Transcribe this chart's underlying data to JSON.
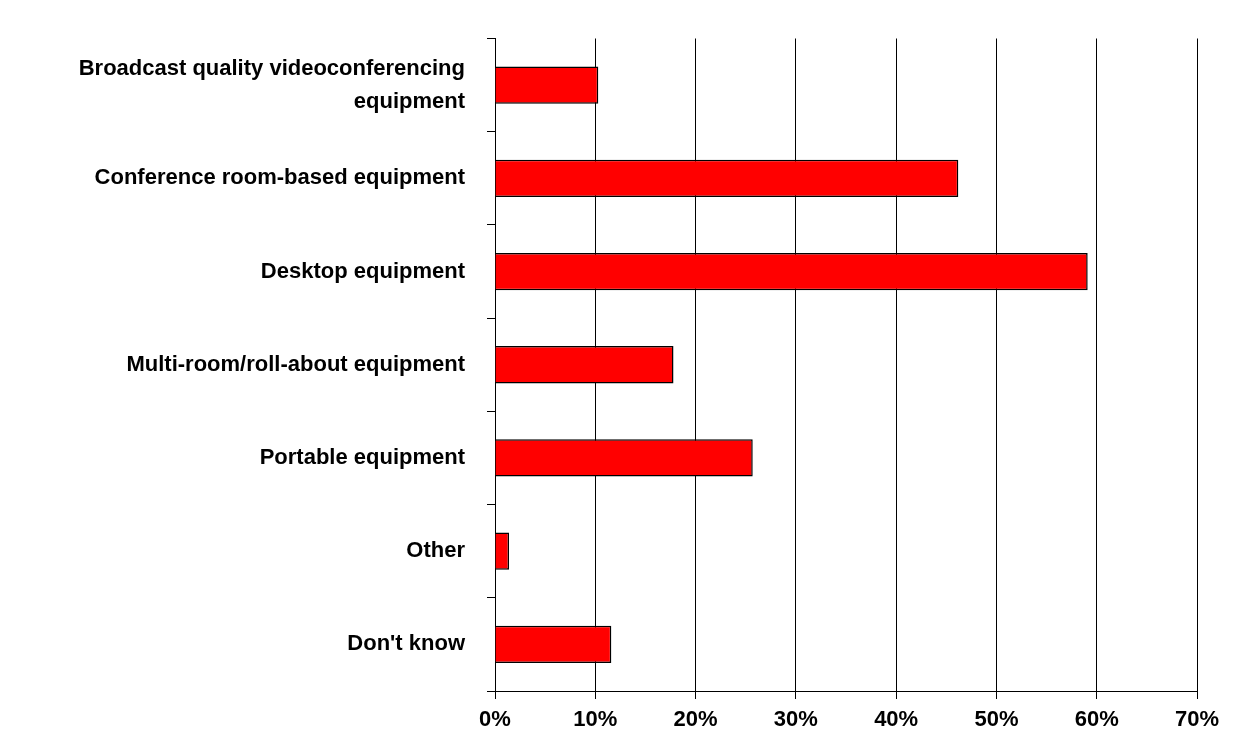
{
  "chart_data": {
    "type": "bar",
    "orientation": "horizontal",
    "categories": [
      "Broadcast quality videoconferencing equipment",
      "Conference room-based equipment",
      "Desktop equipment",
      "Multi-room/roll-about equipment",
      "Portable equipment",
      "Other",
      "Don't know"
    ],
    "values": [
      10.3,
      46.2,
      59.1,
      17.8,
      25.7,
      1.4,
      11.6
    ],
    "color": "#ff0000",
    "xlim": [
      0,
      70
    ],
    "xticks": [
      {
        "value": 0,
        "label": "0%"
      },
      {
        "value": 10,
        "label": "10%"
      },
      {
        "value": 20,
        "label": "20%"
      },
      {
        "value": 30,
        "label": "30%"
      },
      {
        "value": 40,
        "label": "40%"
      },
      {
        "value": 50,
        "label": "50%"
      },
      {
        "value": 60,
        "label": "60%"
      },
      {
        "value": 70,
        "label": "70%"
      }
    ],
    "grid": "x",
    "legend": false
  }
}
